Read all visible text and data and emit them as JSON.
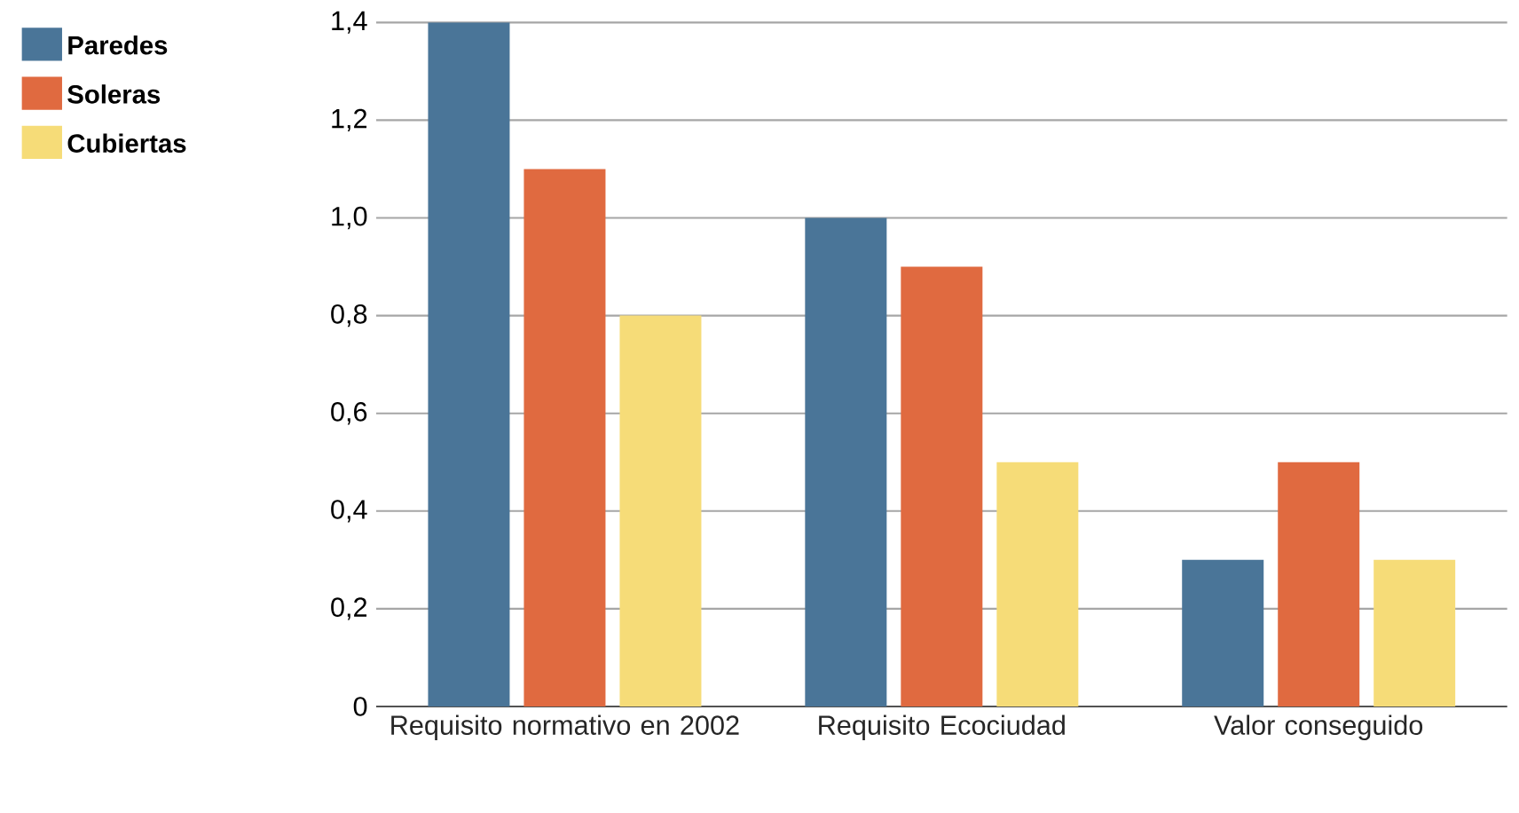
{
  "chart_data": {
    "type": "bar",
    "categories": [
      "Requisito normativo en 2002",
      "Requisito Ecociudad",
      "Valor conseguido"
    ],
    "series": [
      {
        "name": "Paredes",
        "color": "#4a7598",
        "values": [
          1.4,
          1.0,
          0.3
        ]
      },
      {
        "name": "Soleras",
        "color": "#e06a40",
        "values": [
          1.1,
          0.9,
          0.5
        ]
      },
      {
        "name": "Cubiertas",
        "color": "#f6dc78",
        "values": [
          0.8,
          0.5,
          0.3
        ]
      }
    ],
    "ylim": [
      0,
      1.4
    ],
    "yticks": [
      0,
      {
        "value": 0.2,
        "label": "0,2"
      },
      {
        "value": 0.4,
        "label": "0,4"
      },
      {
        "value": 0.6,
        "label": "0,6"
      },
      {
        "value": 0.8,
        "label": "0,8"
      },
      {
        "value": 1.0,
        "label": "1,0"
      },
      {
        "value": 1.2,
        "label": "1,2"
      },
      {
        "value": 1.4,
        "label": "1,4"
      }
    ],
    "grid": "y",
    "legend": "top left"
  }
}
